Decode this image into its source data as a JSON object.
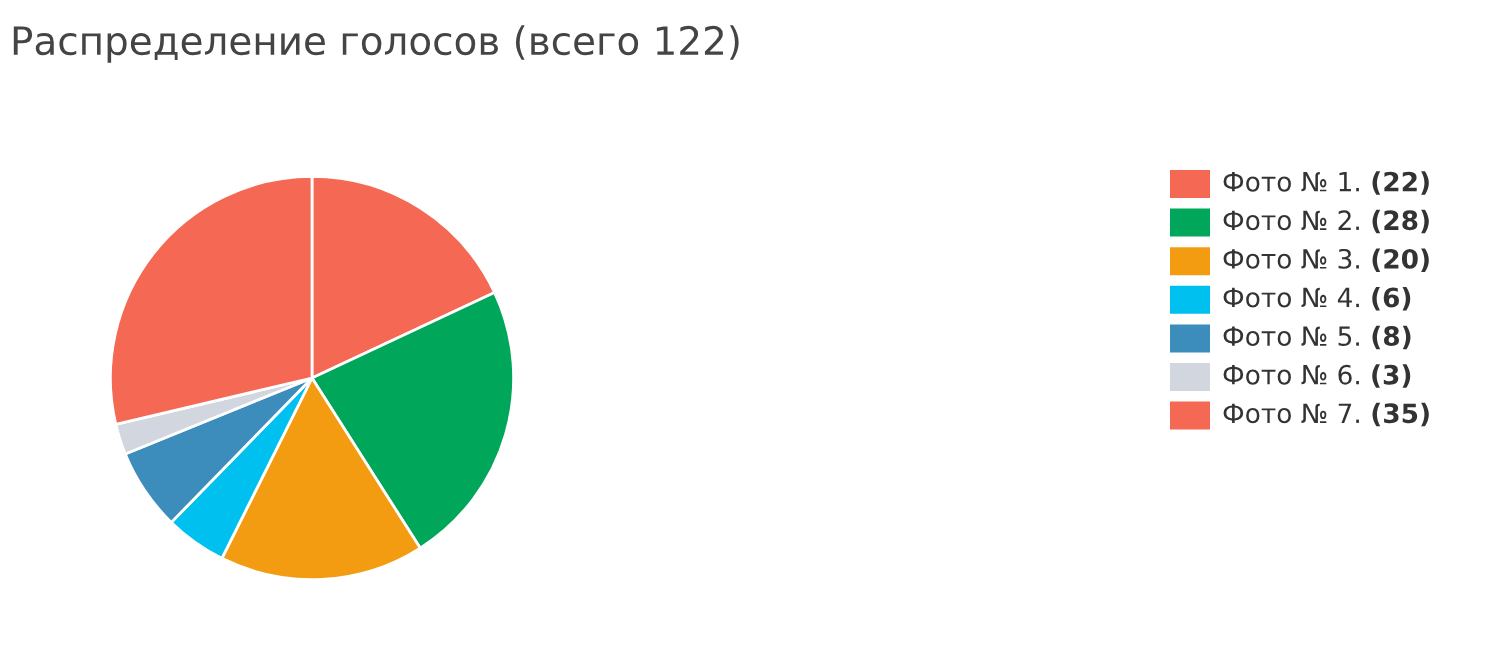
{
  "chart_data": {
    "type": "pie",
    "title": "Распределение голосов (всего 122)",
    "categories": [
      "Фото № 1.",
      "Фото № 2.",
      "Фото № 3.",
      "Фото № 4.",
      "Фото № 5.",
      "Фото № 6.",
      "Фото № 7."
    ],
    "values": [
      22,
      28,
      20,
      6,
      8,
      3,
      35
    ],
    "value_labels": [
      "(22)",
      "(28)",
      "(20)",
      "(6)",
      "(8)",
      "(3)",
      "(35)"
    ],
    "colors": [
      "#f56954",
      "#00a65a",
      "#f39c12",
      "#00c0ef",
      "#3c8dbc",
      "#d2d6de",
      "#f56954"
    ],
    "legend": "right"
  }
}
